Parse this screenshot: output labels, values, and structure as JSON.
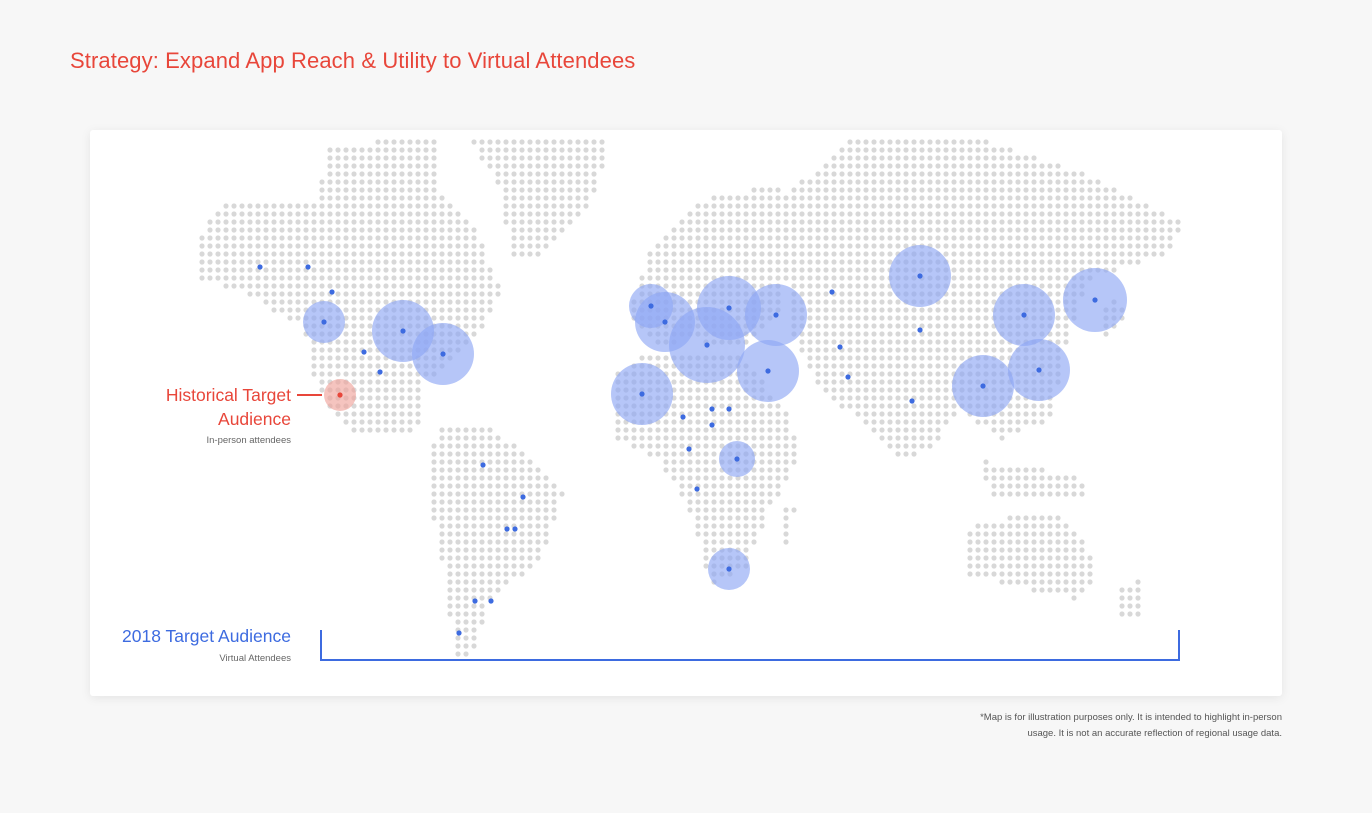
{
  "page": {
    "title": "Strategy: Expand App Reach & Utility to Virtual Attendees"
  },
  "legend": {
    "historical": {
      "title": "Historical Target Audience",
      "subtitle": "In-person attendees",
      "color": "#e8463a"
    },
    "target_2018": {
      "title": "2018 Target Audience",
      "subtitle": "Virtual Attendees",
      "color": "#3d6be0"
    }
  },
  "colors": {
    "land_dot": "#d8d8d8",
    "audience_bubble": "#8fa8f5",
    "audience_point": "#3d6be0",
    "historical_bubble": "#f0a59c"
  },
  "markers": {
    "historical": [
      {
        "region": "Western North America"
      }
    ],
    "virtual": [
      {
        "region": "Northwest North America"
      },
      {
        "region": "Central North America"
      },
      {
        "region": "Eastern North America"
      },
      {
        "region": "Western Europe"
      },
      {
        "region": "Northern Europe"
      },
      {
        "region": "Central Europe"
      },
      {
        "region": "Eastern Europe"
      },
      {
        "region": "Middle East"
      },
      {
        "region": "Northwest Africa"
      },
      {
        "region": "East Africa"
      },
      {
        "region": "Southern Africa"
      },
      {
        "region": "Northern Asia"
      },
      {
        "region": "East Asia"
      },
      {
        "region": "Japan"
      },
      {
        "region": "China"
      },
      {
        "region": "Southeast Asia"
      },
      {
        "region": "Australia"
      }
    ]
  },
  "footnote": {
    "line1": "*Map is for illustration purposes only. It is intended to highlight in-person",
    "line2": "usage. It is not an accurate reflection of regional usage data."
  }
}
